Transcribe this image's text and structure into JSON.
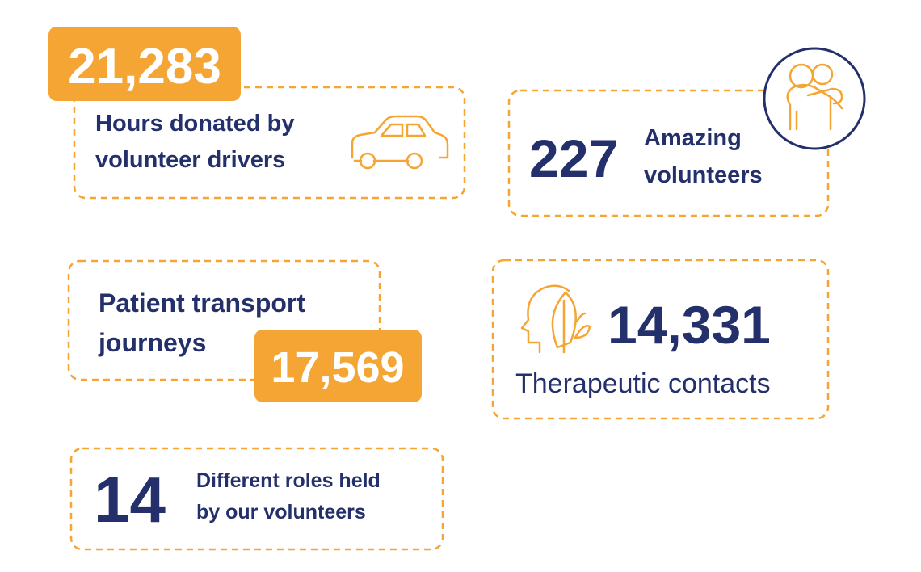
{
  "stats": [
    {
      "value": "21,283",
      "label": [
        "Hours donated by",
        "volunteer drivers"
      ]
    },
    {
      "value": "227",
      "label": [
        "Amazing",
        "volunteers"
      ]
    },
    {
      "value": "17,569",
      "label": [
        "Patient transport",
        "journeys"
      ]
    },
    {
      "value": "14,331",
      "label": [
        "Therapeutic contacts"
      ]
    },
    {
      "value": "14",
      "label": [
        "Different roles held",
        "by our volunteers"
      ]
    }
  ]
}
